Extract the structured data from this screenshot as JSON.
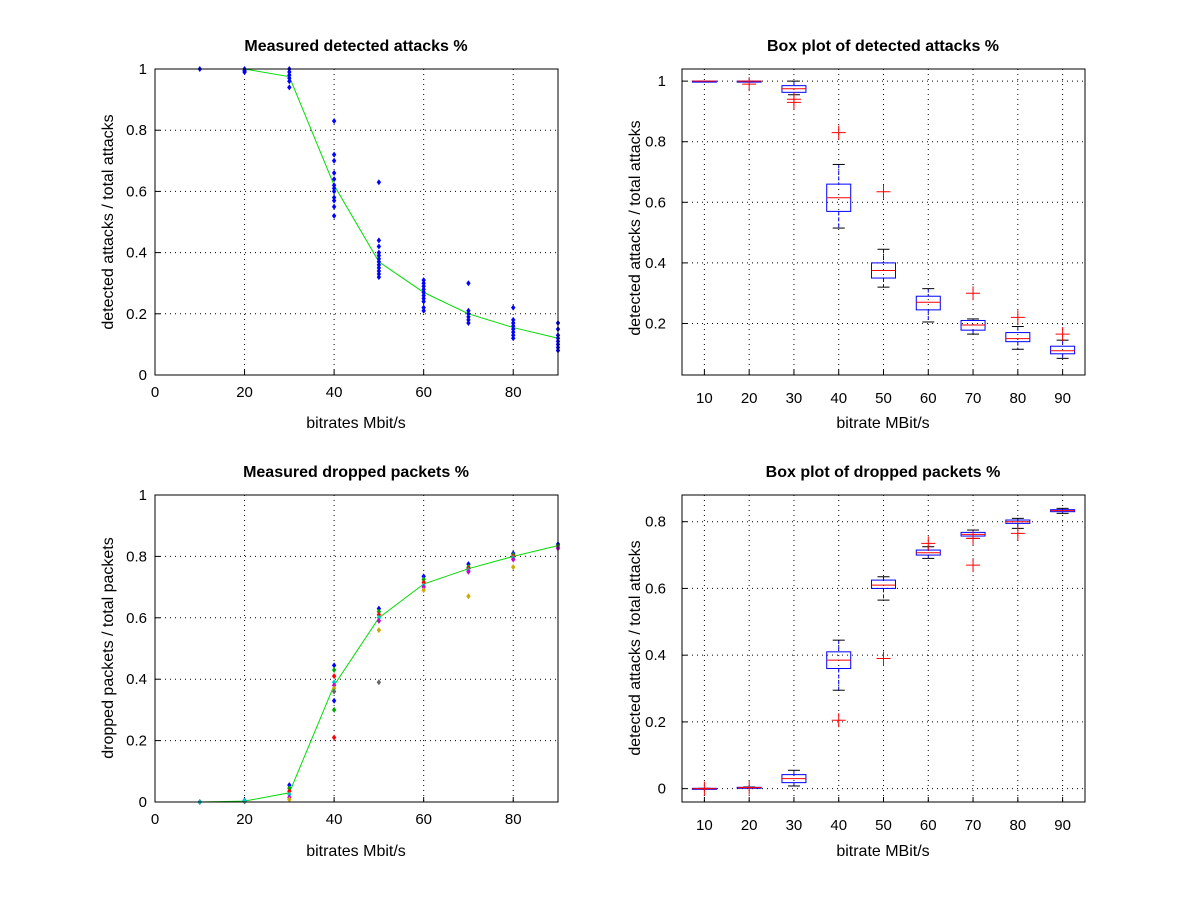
{
  "chart_data": [
    {
      "type": "scatter",
      "title": "Measured detected attacks %",
      "xlabel": "bitrates Mbit/s",
      "ylabel": "detected attacks / total attacks",
      "xlim": [
        0,
        90
      ],
      "ylim": [
        0,
        1
      ],
      "xticks": [
        "0",
        "20",
        "40",
        "60",
        "80"
      ],
      "yticks": [
        "0",
        "0.2",
        "0.4",
        "0.6",
        "0.8",
        "1"
      ],
      "grid": true,
      "colors": {
        "points": "#0000ff",
        "line": "#00dd00"
      },
      "points": {
        "10": [
          1.0
        ],
        "20": [
          1.0,
          0.995,
          0.99,
          0.99
        ],
        "30": [
          1.0,
          0.99,
          0.98,
          0.97,
          0.96,
          0.94
        ],
        "40": [
          0.83,
          0.72,
          0.7,
          0.66,
          0.64,
          0.62,
          0.61,
          0.6,
          0.58,
          0.57,
          0.55,
          0.52
        ],
        "50": [
          0.63,
          0.44,
          0.42,
          0.4,
          0.39,
          0.38,
          0.37,
          0.36,
          0.35,
          0.34,
          0.33,
          0.32
        ],
        "60": [
          0.31,
          0.3,
          0.29,
          0.28,
          0.27,
          0.26,
          0.25,
          0.24,
          0.22,
          0.21
        ],
        "70": [
          0.3,
          0.21,
          0.2,
          0.19,
          0.18,
          0.17
        ],
        "80": [
          0.22,
          0.18,
          0.17,
          0.16,
          0.15,
          0.14,
          0.13,
          0.12
        ],
        "90": [
          0.17,
          0.15,
          0.13,
          0.12,
          0.11,
          0.1,
          0.09,
          0.08
        ]
      },
      "mean_line": {
        "x": [
          20,
          30,
          40,
          50,
          60,
          70,
          80,
          90
        ],
        "y": [
          1.0,
          0.975,
          0.62,
          0.37,
          0.27,
          0.2,
          0.155,
          0.12
        ]
      }
    },
    {
      "type": "box",
      "title": "Box plot of detected attacks %",
      "xlabel": "bitrate MBit/s",
      "ylabel": "detected attacks / total attacks",
      "ylim": [
        0.03,
        1.04
      ],
      "categories": [
        "10",
        "20",
        "30",
        "40",
        "50",
        "60",
        "70",
        "80",
        "90"
      ],
      "yticks": [
        "0.2",
        "0.4",
        "0.6",
        "0.8",
        "1"
      ],
      "grid": true,
      "colors": {
        "box": "#0000ff",
        "median": "#ff0000",
        "outlier": "#ff0000",
        "whisker": "#000000"
      },
      "boxes": [
        {
          "min": 1.0,
          "q1": 1.0,
          "median": 1.0,
          "q3": 1.0,
          "max": 1.0,
          "outliers": []
        },
        {
          "min": 0.997,
          "q1": 0.998,
          "median": 1.0,
          "q3": 1.0,
          "max": 1.0,
          "outliers": [
            0.99
          ]
        },
        {
          "min": 0.955,
          "q1": 0.963,
          "median": 0.975,
          "q3": 0.985,
          "max": 1.0,
          "outliers": [
            0.94,
            0.93
          ]
        },
        {
          "min": 0.515,
          "q1": 0.57,
          "median": 0.615,
          "q3": 0.66,
          "max": 0.725,
          "outliers": [
            0.83
          ]
        },
        {
          "min": 0.32,
          "q1": 0.35,
          "median": 0.375,
          "q3": 0.4,
          "max": 0.445,
          "outliers": [
            0.635
          ]
        },
        {
          "min": 0.205,
          "q1": 0.245,
          "median": 0.27,
          "q3": 0.29,
          "max": 0.315,
          "outliers": []
        },
        {
          "min": 0.165,
          "q1": 0.178,
          "median": 0.195,
          "q3": 0.21,
          "max": 0.215,
          "outliers": [
            0.3
          ]
        },
        {
          "min": 0.115,
          "q1": 0.14,
          "median": 0.15,
          "q3": 0.17,
          "max": 0.19,
          "outliers": [
            0.22
          ]
        },
        {
          "min": 0.085,
          "q1": 0.1,
          "median": 0.11,
          "q3": 0.125,
          "max": 0.145,
          "outliers": [
            0.165
          ]
        }
      ]
    },
    {
      "type": "scatter",
      "title": "Measured dropped packets %",
      "xlabel": "bitrates Mbit/s",
      "ylabel": "dropped packets / total packets",
      "xlim": [
        0,
        90
      ],
      "ylim": [
        0,
        1
      ],
      "xticks": [
        "0",
        "20",
        "40",
        "60",
        "80"
      ],
      "yticks": [
        "0",
        "0.2",
        "0.4",
        "0.6",
        "0.8",
        "1"
      ],
      "grid": true,
      "colors": {
        "line": "#00dd00",
        "points": [
          "#0000ff",
          "#00aa00",
          "#ff0000",
          "#00cccc",
          "#cc00cc",
          "#ccaa00",
          "#666666"
        ]
      },
      "points": {
        "10": [
          0.0,
          0.0,
          0.0,
          0.0
        ],
        "20": [
          0.005,
          0.003,
          0.002,
          0.004
        ],
        "30": [
          0.055,
          0.045,
          0.035,
          0.025,
          0.015,
          0.008
        ],
        "40": [
          0.445,
          0.43,
          0.41,
          0.39,
          0.38,
          0.37,
          0.36,
          0.33,
          0.3,
          0.21
        ],
        "50": [
          0.63,
          0.62,
          0.61,
          0.6,
          0.59,
          0.56,
          0.39
        ],
        "60": [
          0.735,
          0.725,
          0.715,
          0.705,
          0.7,
          0.69
        ],
        "70": [
          0.775,
          0.765,
          0.76,
          0.755,
          0.75,
          0.67
        ],
        "80": [
          0.81,
          0.805,
          0.8,
          0.795,
          0.79,
          0.765
        ],
        "90": [
          0.84,
          0.835,
          0.83,
          0.828,
          0.826
        ]
      },
      "mean_line": {
        "x": [
          10,
          20,
          30,
          40,
          50,
          60,
          70,
          80,
          90
        ],
        "y": [
          0.0,
          0.003,
          0.03,
          0.38,
          0.6,
          0.71,
          0.76,
          0.8,
          0.835
        ]
      }
    },
    {
      "type": "box",
      "title": "Box plot of dropped packets %",
      "xlabel": "bitrate MBit/s",
      "ylabel": "detected attacks / total attacks",
      "ylim": [
        -0.04,
        0.88
      ],
      "categories": [
        "10",
        "20",
        "30",
        "40",
        "50",
        "60",
        "70",
        "80",
        "90"
      ],
      "yticks": [
        "0",
        "0.2",
        "0.4",
        "0.6",
        "0.8"
      ],
      "grid": true,
      "colors": {
        "box": "#0000ff",
        "median": "#ff0000",
        "outlier": "#ff0000",
        "whisker": "#000000"
      },
      "boxes": [
        {
          "min": 0.0,
          "q1": 0.0,
          "median": 0.0,
          "q3": 0.001,
          "max": 0.001,
          "outliers": [
            0.0
          ]
        },
        {
          "min": 0.002,
          "q1": 0.003,
          "median": 0.003,
          "q3": 0.004,
          "max": 0.005,
          "outliers": [
            0.003
          ]
        },
        {
          "min": 0.008,
          "q1": 0.018,
          "median": 0.03,
          "q3": 0.042,
          "max": 0.055,
          "outliers": []
        },
        {
          "min": 0.295,
          "q1": 0.36,
          "median": 0.385,
          "q3": 0.41,
          "max": 0.445,
          "outliers": [
            0.205
          ]
        },
        {
          "min": 0.565,
          "q1": 0.6,
          "median": 0.61,
          "q3": 0.625,
          "max": 0.635,
          "outliers": [
            0.39
          ]
        },
        {
          "min": 0.69,
          "q1": 0.7,
          "median": 0.707,
          "q3": 0.715,
          "max": 0.725,
          "outliers": [
            0.735
          ]
        },
        {
          "min": 0.75,
          "q1": 0.757,
          "median": 0.762,
          "q3": 0.768,
          "max": 0.775,
          "outliers": [
            0.75,
            0.67
          ]
        },
        {
          "min": 0.78,
          "q1": 0.795,
          "median": 0.8,
          "q3": 0.805,
          "max": 0.81,
          "outliers": [
            0.765
          ]
        },
        {
          "min": 0.825,
          "q1": 0.83,
          "median": 0.833,
          "q3": 0.836,
          "max": 0.84,
          "outliers": []
        }
      ]
    }
  ]
}
